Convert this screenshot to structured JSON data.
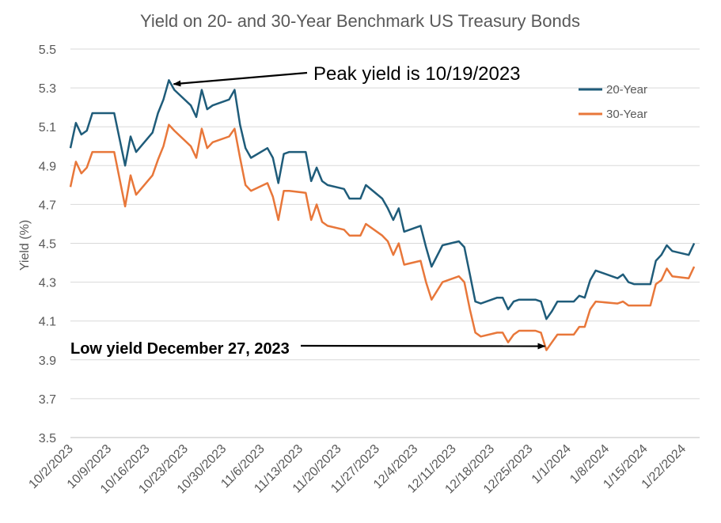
{
  "chart_data": {
    "type": "line",
    "title": "Yield on 20- and 30-Year Benchmark US Treasury Bonds",
    "xlabel": "",
    "ylabel": "Yield (%)",
    "ylim": [
      3.5,
      5.5
    ],
    "yticks": [
      "3.5",
      "3.7",
      "3.9",
      "4.1",
      "4.3",
      "4.5",
      "4.7",
      "4.9",
      "5.1",
      "5.3",
      "5.5"
    ],
    "xlim": [
      "2023-10-02",
      "2024-01-25"
    ],
    "xtick_labels": [
      {
        "date": "2023-10-02",
        "label": "10/2/2023"
      },
      {
        "date": "2023-10-09",
        "label": "10/9/2023"
      },
      {
        "date": "2023-10-16",
        "label": "10/16/2023"
      },
      {
        "date": "2023-10-23",
        "label": "10/23/2023"
      },
      {
        "date": "2023-10-30",
        "label": "10/30/2023"
      },
      {
        "date": "2023-11-06",
        "label": "11/6/2023"
      },
      {
        "date": "2023-11-13",
        "label": "11/13/2023"
      },
      {
        "date": "2023-11-20",
        "label": "11/20/2023"
      },
      {
        "date": "2023-11-27",
        "label": "11/27/2023"
      },
      {
        "date": "2023-12-04",
        "label": "12/4/2023"
      },
      {
        "date": "2023-12-11",
        "label": "12/11/2023"
      },
      {
        "date": "2023-12-18",
        "label": "12/18/2023"
      },
      {
        "date": "2023-12-25",
        "label": "12/25/2023"
      },
      {
        "date": "2024-01-01",
        "label": "1/1/2024"
      },
      {
        "date": "2024-01-08",
        "label": "1/8/2024"
      },
      {
        "date": "2024-01-15",
        "label": "1/15/2024"
      },
      {
        "date": "2024-01-22",
        "label": "1/22/2024"
      }
    ],
    "grid": true,
    "legend_position": "top-right",
    "series": [
      {
        "name": "20-Year",
        "color": "#1f5c7a",
        "points": [
          [
            "2023-10-02",
            4.99
          ],
          [
            "2023-10-03",
            5.12
          ],
          [
            "2023-10-04",
            5.06
          ],
          [
            "2023-10-05",
            5.08
          ],
          [
            "2023-10-06",
            5.17
          ],
          [
            "2023-10-09",
            5.17
          ],
          [
            "2023-10-10",
            5.17
          ],
          [
            "2023-10-12",
            4.9
          ],
          [
            "2023-10-13",
            5.05
          ],
          [
            "2023-10-14",
            4.97
          ],
          [
            "2023-10-17",
            5.07
          ],
          [
            "2023-10-18",
            5.17
          ],
          [
            "2023-10-19",
            5.24
          ],
          [
            "2023-10-20",
            5.34
          ],
          [
            "2023-10-21",
            5.29
          ],
          [
            "2023-10-24",
            5.21
          ],
          [
            "2023-10-25",
            5.15
          ],
          [
            "2023-10-26",
            5.29
          ],
          [
            "2023-10-27",
            5.19
          ],
          [
            "2023-10-28",
            5.21
          ],
          [
            "2023-10-31",
            5.24
          ],
          [
            "2023-11-01",
            5.29
          ],
          [
            "2023-11-02",
            5.11
          ],
          [
            "2023-11-03",
            4.99
          ],
          [
            "2023-11-04",
            4.94
          ],
          [
            "2023-11-07",
            4.99
          ],
          [
            "2023-11-08",
            4.94
          ],
          [
            "2023-11-09",
            4.81
          ],
          [
            "2023-11-10",
            4.96
          ],
          [
            "2023-11-11",
            4.97
          ],
          [
            "2023-11-14",
            4.97
          ],
          [
            "2023-11-15",
            4.82
          ],
          [
            "2023-11-16",
            4.89
          ],
          [
            "2023-11-17",
            4.82
          ],
          [
            "2023-11-18",
            4.8
          ],
          [
            "2023-11-21",
            4.78
          ],
          [
            "2023-11-22",
            4.73
          ],
          [
            "2023-11-24",
            4.73
          ],
          [
            "2023-11-25",
            4.8
          ],
          [
            "2023-11-28",
            4.73
          ],
          [
            "2023-11-29",
            4.68
          ],
          [
            "2023-11-30",
            4.62
          ],
          [
            "2023-12-01",
            4.68
          ],
          [
            "2023-12-02",
            4.56
          ],
          [
            "2023-12-05",
            4.59
          ],
          [
            "2023-12-06",
            4.48
          ],
          [
            "2023-12-07",
            4.38
          ],
          [
            "2023-12-09",
            4.49
          ],
          [
            "2023-12-12",
            4.51
          ],
          [
            "2023-12-13",
            4.48
          ],
          [
            "2023-12-14",
            4.34
          ],
          [
            "2023-12-15",
            4.2
          ],
          [
            "2023-12-16",
            4.19
          ],
          [
            "2023-12-19",
            4.22
          ],
          [
            "2023-12-20",
            4.22
          ],
          [
            "2023-12-21",
            4.16
          ],
          [
            "2023-12-22",
            4.2
          ],
          [
            "2023-12-23",
            4.21
          ],
          [
            "2023-12-26",
            4.21
          ],
          [
            "2023-12-27",
            4.2
          ],
          [
            "2023-12-28",
            4.11
          ],
          [
            "2023-12-29",
            4.15
          ],
          [
            "2023-12-30",
            4.2
          ],
          [
            "2024-01-02",
            4.2
          ],
          [
            "2024-01-03",
            4.23
          ],
          [
            "2024-01-04",
            4.22
          ],
          [
            "2024-01-05",
            4.31
          ],
          [
            "2024-01-06",
            4.36
          ],
          [
            "2024-01-10",
            4.32
          ],
          [
            "2024-01-11",
            4.34
          ],
          [
            "2024-01-12",
            4.3
          ],
          [
            "2024-01-13",
            4.29
          ],
          [
            "2024-01-16",
            4.29
          ],
          [
            "2024-01-17",
            4.41
          ],
          [
            "2024-01-18",
            4.44
          ],
          [
            "2024-01-19",
            4.49
          ],
          [
            "2024-01-20",
            4.46
          ],
          [
            "2024-01-23",
            4.44
          ],
          [
            "2024-01-24",
            4.5
          ]
        ]
      },
      {
        "name": "30-Year",
        "color": "#e8773a",
        "points": [
          [
            "2023-10-02",
            4.79
          ],
          [
            "2023-10-03",
            4.92
          ],
          [
            "2023-10-04",
            4.86
          ],
          [
            "2023-10-05",
            4.89
          ],
          [
            "2023-10-06",
            4.97
          ],
          [
            "2023-10-09",
            4.97
          ],
          [
            "2023-10-10",
            4.97
          ],
          [
            "2023-10-12",
            4.69
          ],
          [
            "2023-10-13",
            4.85
          ],
          [
            "2023-10-14",
            4.75
          ],
          [
            "2023-10-17",
            4.85
          ],
          [
            "2023-10-18",
            4.93
          ],
          [
            "2023-10-19",
            5.0
          ],
          [
            "2023-10-20",
            5.11
          ],
          [
            "2023-10-21",
            5.08
          ],
          [
            "2023-10-24",
            5.0
          ],
          [
            "2023-10-25",
            4.94
          ],
          [
            "2023-10-26",
            5.09
          ],
          [
            "2023-10-27",
            4.99
          ],
          [
            "2023-10-28",
            5.02
          ],
          [
            "2023-10-31",
            5.05
          ],
          [
            "2023-11-01",
            5.09
          ],
          [
            "2023-11-02",
            4.94
          ],
          [
            "2023-11-03",
            4.8
          ],
          [
            "2023-11-04",
            4.77
          ],
          [
            "2023-11-07",
            4.81
          ],
          [
            "2023-11-08",
            4.74
          ],
          [
            "2023-11-09",
            4.62
          ],
          [
            "2023-11-10",
            4.77
          ],
          [
            "2023-11-11",
            4.77
          ],
          [
            "2023-11-14",
            4.76
          ],
          [
            "2023-11-15",
            4.62
          ],
          [
            "2023-11-16",
            4.7
          ],
          [
            "2023-11-17",
            4.61
          ],
          [
            "2023-11-18",
            4.59
          ],
          [
            "2023-11-21",
            4.57
          ],
          [
            "2023-11-22",
            4.54
          ],
          [
            "2023-11-24",
            4.54
          ],
          [
            "2023-11-25",
            4.6
          ],
          [
            "2023-11-28",
            4.54
          ],
          [
            "2023-11-29",
            4.51
          ],
          [
            "2023-11-30",
            4.44
          ],
          [
            "2023-12-01",
            4.5
          ],
          [
            "2023-12-02",
            4.39
          ],
          [
            "2023-12-05",
            4.41
          ],
          [
            "2023-12-06",
            4.3
          ],
          [
            "2023-12-07",
            4.21
          ],
          [
            "2023-12-09",
            4.3
          ],
          [
            "2023-12-12",
            4.33
          ],
          [
            "2023-12-13",
            4.3
          ],
          [
            "2023-12-14",
            4.16
          ],
          [
            "2023-12-15",
            4.04
          ],
          [
            "2023-12-16",
            4.02
          ],
          [
            "2023-12-19",
            4.04
          ],
          [
            "2023-12-20",
            4.04
          ],
          [
            "2023-12-21",
            3.99
          ],
          [
            "2023-12-22",
            4.03
          ],
          [
            "2023-12-23",
            4.05
          ],
          [
            "2023-12-26",
            4.05
          ],
          [
            "2023-12-27",
            4.04
          ],
          [
            "2023-12-28",
            3.95
          ],
          [
            "2023-12-29",
            3.99
          ],
          [
            "2023-12-30",
            4.03
          ],
          [
            "2024-01-02",
            4.03
          ],
          [
            "2024-01-03",
            4.07
          ],
          [
            "2024-01-04",
            4.07
          ],
          [
            "2024-01-05",
            4.16
          ],
          [
            "2024-01-06",
            4.2
          ],
          [
            "2024-01-10",
            4.19
          ],
          [
            "2024-01-11",
            4.2
          ],
          [
            "2024-01-12",
            4.18
          ],
          [
            "2024-01-13",
            4.18
          ],
          [
            "2024-01-16",
            4.18
          ],
          [
            "2024-01-17",
            4.29
          ],
          [
            "2024-01-18",
            4.31
          ],
          [
            "2024-01-19",
            4.37
          ],
          [
            "2024-01-20",
            4.33
          ],
          [
            "2024-01-23",
            4.32
          ],
          [
            "2024-01-24",
            4.38
          ]
        ]
      }
    ],
    "annotations": [
      {
        "text": "Peak yield is 10/19/2023",
        "target": [
          "2023-10-20",
          5.34
        ]
      },
      {
        "text": "Low yield December 27, 2023",
        "target": [
          "2023-12-28",
          3.95
        ]
      }
    ]
  }
}
